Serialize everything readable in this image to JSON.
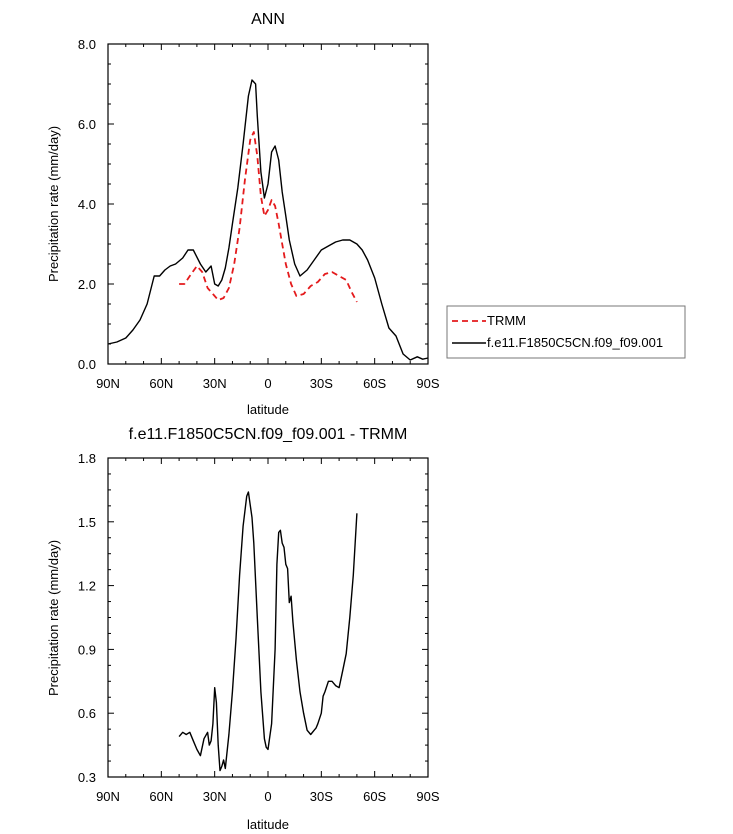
{
  "chart_data": [
    {
      "type": "line",
      "title": "ANN",
      "xlabel": "latitude",
      "ylabel": "Precipitation rate (mm/day)",
      "xlim": [
        90,
        -90
      ],
      "ylim": [
        0.0,
        8.0
      ],
      "xticks": [
        90,
        60,
        30,
        0,
        -30,
        -60,
        -90
      ],
      "xtick_labels": [
        "90N",
        "60N",
        "30N",
        "0",
        "30S",
        "60S",
        "90S"
      ],
      "yticks": [
        0.0,
        2.0,
        4.0,
        6.0,
        8.0
      ],
      "ytick_labels": [
        "0.0",
        "2.0",
        "4.0",
        "6.0",
        "8.0"
      ],
      "grid": false,
      "legend": "right",
      "series": [
        {
          "name": "TRMM",
          "color": "#e41a1c",
          "dash": "dashed",
          "x": [
            50,
            47,
            44,
            40,
            37,
            34,
            31,
            28,
            25,
            22,
            19,
            16,
            13,
            10,
            8,
            6,
            4,
            2,
            0,
            -2,
            -4,
            -6,
            -8,
            -10,
            -13,
            -16,
            -20,
            -24,
            -28,
            -32,
            -36,
            -40,
            -44,
            -47,
            -50
          ],
          "y": [
            2.0,
            2.0,
            2.2,
            2.45,
            2.3,
            1.9,
            1.75,
            1.6,
            1.65,
            1.9,
            2.5,
            3.4,
            4.6,
            5.6,
            5.8,
            5.2,
            4.2,
            3.7,
            3.85,
            4.1,
            3.95,
            3.5,
            3.0,
            2.5,
            2.0,
            1.7,
            1.75,
            1.95,
            2.05,
            2.25,
            2.3,
            2.2,
            2.1,
            1.8,
            1.55
          ]
        },
        {
          "name": "f.e11.F1850C5CN.f09_f09.001",
          "color": "#000000",
          "dash": "solid",
          "x": [
            90,
            85,
            80,
            76,
            72,
            68,
            64,
            61,
            58,
            55,
            52,
            48,
            45,
            42,
            38,
            35,
            32,
            30,
            28,
            26,
            24,
            22,
            20,
            17,
            14,
            11,
            9,
            7,
            6,
            4,
            2,
            0,
            -2,
            -4,
            -6,
            -8,
            -10,
            -12,
            -15,
            -18,
            -22,
            -26,
            -30,
            -34,
            -38,
            -42,
            -46,
            -50,
            -53,
            -56,
            -60,
            -64,
            -68,
            -72,
            -76,
            -80,
            -84,
            -87,
            -90
          ],
          "y": [
            0.5,
            0.55,
            0.65,
            0.85,
            1.1,
            1.5,
            2.2,
            2.2,
            2.35,
            2.45,
            2.5,
            2.65,
            2.85,
            2.85,
            2.5,
            2.3,
            2.45,
            2.0,
            1.95,
            2.1,
            2.4,
            2.9,
            3.5,
            4.4,
            5.5,
            6.7,
            7.1,
            7.0,
            6.2,
            4.8,
            4.15,
            4.5,
            5.3,
            5.45,
            5.1,
            4.3,
            3.7,
            3.1,
            2.5,
            2.2,
            2.35,
            2.6,
            2.85,
            2.95,
            3.05,
            3.1,
            3.1,
            3.0,
            2.85,
            2.6,
            2.15,
            1.5,
            0.9,
            0.7,
            0.25,
            0.1,
            0.18,
            0.12,
            0.15
          ]
        }
      ]
    },
    {
      "type": "line",
      "title": "f.e11.F1850C5CN.f09_f09.001 - TRMM",
      "xlabel": "latitude",
      "ylabel": "Precipitation rate (mm/day)",
      "xlim": [
        90,
        -90
      ],
      "ylim": [
        0.3,
        1.8
      ],
      "xticks": [
        90,
        60,
        30,
        0,
        -30,
        -60,
        -90
      ],
      "xtick_labels": [
        "90N",
        "60N",
        "30N",
        "0",
        "30S",
        "60S",
        "90S"
      ],
      "yticks": [
        0.3,
        0.6,
        0.9,
        1.2,
        1.5,
        1.8
      ],
      "ytick_labels": [
        "0.3",
        "0.6",
        "0.9",
        "1.2",
        "1.5",
        "1.8"
      ],
      "grid": false,
      "series": [
        {
          "color": "#000000",
          "dash": "solid",
          "x": [
            50,
            48,
            46,
            44,
            42,
            40,
            38,
            36,
            34,
            33,
            32,
            31,
            30,
            29,
            28,
            27,
            26,
            25,
            24,
            22,
            20,
            18,
            16,
            14,
            12,
            11,
            10,
            9,
            8,
            6,
            4,
            2,
            1,
            0,
            -2,
            -4,
            -5,
            -6,
            -7,
            -8,
            -9,
            -10,
            -11,
            -12,
            -13,
            -14,
            -16,
            -18,
            -20,
            -22,
            -24,
            -26,
            -27,
            -28,
            -30,
            -31,
            -32,
            -34,
            -36,
            -38,
            -40,
            -42,
            -44,
            -46,
            -48,
            -50
          ],
          "y": [
            0.49,
            0.51,
            0.5,
            0.51,
            0.47,
            0.43,
            0.4,
            0.48,
            0.51,
            0.45,
            0.47,
            0.55,
            0.72,
            0.65,
            0.45,
            0.33,
            0.35,
            0.38,
            0.34,
            0.5,
            0.7,
            0.95,
            1.25,
            1.48,
            1.62,
            1.64,
            1.58,
            1.52,
            1.4,
            1.05,
            0.7,
            0.48,
            0.44,
            0.43,
            0.55,
            0.9,
            1.3,
            1.45,
            1.46,
            1.4,
            1.38,
            1.3,
            1.28,
            1.12,
            1.15,
            1.03,
            0.85,
            0.7,
            0.6,
            0.52,
            0.5,
            0.52,
            0.53,
            0.55,
            0.6,
            0.68,
            0.7,
            0.75,
            0.75,
            0.73,
            0.72,
            0.8,
            0.88,
            1.05,
            1.25,
            1.54
          ]
        }
      ]
    }
  ],
  "legend_entries": [
    {
      "label": "TRMM"
    },
    {
      "label": "f.e11.F1850C5CN.f09_f09.001"
    }
  ]
}
